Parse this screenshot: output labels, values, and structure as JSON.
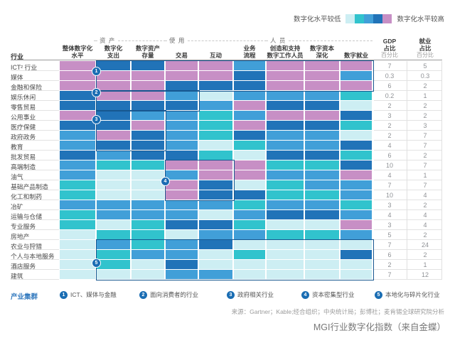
{
  "palette": {
    "levels": [
      "#cdeef3",
      "#31c3cd",
      "#419fd8",
      "#2173b8",
      "#c78fc5"
    ],
    "box_border": "#17578f",
    "badge_blue": "#1a6db3",
    "accent_blue": "#3279be"
  },
  "legend": {
    "low_label": "数字化水平较低",
    "high_label": "数字化水平较高"
  },
  "header": {
    "industry": "行业",
    "groups": [
      {
        "label": "资 产"
      },
      {
        "label": "使 用"
      },
      {
        "label": "人 员"
      }
    ],
    "columns": [
      {
        "l1": "整体数字化",
        "l2": "水平"
      },
      {
        "l1": "数字化",
        "l2": "支出"
      },
      {
        "l1": "数字资产",
        "l2": "存量"
      },
      {
        "l1": "",
        "l2": "交易"
      },
      {
        "l1": "",
        "l2": "互动"
      },
      {
        "l1": "业务",
        "l2": "流程"
      },
      {
        "l1": "创造和支持",
        "l2": "数字工作人员"
      },
      {
        "l1": "数字资本",
        "l2": "深化"
      },
      {
        "l1": "",
        "l2": "数字就业"
      }
    ],
    "gdp": {
      "l1": "GDP",
      "l2": "占比",
      "l3": "百分比"
    },
    "employment": {
      "l1": "就业",
      "l2": "占比",
      "l3": "百分比"
    }
  },
  "chart_data": {
    "type": "heatmap",
    "title": "MGI行业数字化指数（来自金蝶）",
    "level_meaning": "1=数字化水平较低 … 5=数字化水平较高（5级色阶：浅青→青绿→天蓝→深蓝→粉紫）",
    "columns": [
      "整体数字化水平",
      "数字化支出",
      "数字资产存量",
      "交易",
      "互动",
      "业务流程",
      "创造和支持数字工作人员",
      "数字资本深化",
      "数字就业"
    ],
    "value_columns": [
      "GDP占比 百分比",
      "就业占比 百分比"
    ],
    "rows": [
      {
        "name": "ICT² 行业",
        "levels": [
          5,
          4,
          4,
          5,
          5,
          3,
          5,
          5,
          5
        ],
        "gdp": "7",
        "employment": "5"
      },
      {
        "name": "媒体",
        "levels": [
          5,
          5,
          5,
          5,
          5,
          4,
          5,
          5,
          3
        ],
        "gdp": "0.3",
        "employment": "0.3"
      },
      {
        "name": "金融和保险",
        "levels": [
          5,
          5,
          5,
          4,
          4,
          4,
          5,
          5,
          5
        ],
        "gdp": "6",
        "employment": "2"
      },
      {
        "name": "娱乐休闲",
        "levels": [
          4,
          5,
          5,
          3,
          1,
          3,
          3,
          3,
          2
        ],
        "gdp": "0.2",
        "employment": "1"
      },
      {
        "name": "零售贸易",
        "levels": [
          4,
          4,
          4,
          4,
          3,
          5,
          4,
          4,
          1
        ],
        "gdp": "2",
        "employment": "2"
      },
      {
        "name": "公用事业",
        "levels": [
          5,
          4,
          3,
          3,
          2,
          3,
          5,
          5,
          4
        ],
        "gdp": "3",
        "employment": "2"
      },
      {
        "name": "医疗保健",
        "levels": [
          4,
          4,
          5,
          3,
          2,
          5,
          4,
          4,
          2
        ],
        "gdp": "2",
        "employment": "3"
      },
      {
        "name": "政府政务",
        "levels": [
          3,
          5,
          4,
          3,
          2,
          4,
          3,
          3,
          1
        ],
        "gdp": "2",
        "employment": "7"
      },
      {
        "name": "教育",
        "levels": [
          3,
          4,
          4,
          3,
          1,
          2,
          3,
          3,
          4
        ],
        "gdp": "4",
        "employment": "7"
      },
      {
        "name": "批发贸易",
        "levels": [
          4,
          3,
          4,
          4,
          2,
          1,
          4,
          4,
          2
        ],
        "gdp": "6",
        "employment": "2"
      },
      {
        "name": "高端制造",
        "levels": [
          3,
          2,
          2,
          5,
          5,
          5,
          2,
          2,
          4
        ],
        "gdp": "10",
        "employment": "7"
      },
      {
        "name": "油气",
        "levels": [
          3,
          1,
          1,
          3,
          5,
          5,
          3,
          3,
          5
        ],
        "gdp": "4",
        "employment": "1"
      },
      {
        "name": "基础产品制造",
        "levels": [
          2,
          1,
          1,
          5,
          4,
          1,
          2,
          3,
          3
        ],
        "gdp": "7",
        "employment": "7"
      },
      {
        "name": "化工和制药",
        "levels": [
          2,
          1,
          1,
          5,
          4,
          4,
          2,
          2,
          3
        ],
        "gdp": "10",
        "employment": "4"
      },
      {
        "name": "冶矿",
        "levels": [
          3,
          3,
          3,
          3,
          3,
          2,
          3,
          3,
          2
        ],
        "gdp": "3",
        "employment": "2"
      },
      {
        "name": "运输与仓储",
        "levels": [
          2,
          3,
          3,
          3,
          1,
          3,
          4,
          4,
          3
        ],
        "gdp": "4",
        "employment": "4"
      },
      {
        "name": "专业服务",
        "levels": [
          2,
          1,
          2,
          4,
          4,
          2,
          1,
          1,
          5
        ],
        "gdp": "3",
        "employment": "4"
      },
      {
        "name": "房地产",
        "levels": [
          1,
          2,
          2,
          1,
          3,
          3,
          2,
          2,
          3
        ],
        "gdp": "5",
        "employment": "2"
      },
      {
        "name": "农业与狩猎",
        "levels": [
          1,
          3,
          2,
          3,
          4,
          1,
          1,
          1,
          1
        ],
        "gdp": "7",
        "employment": "24"
      },
      {
        "name": "个人与本地服务",
        "levels": [
          1,
          2,
          3,
          3,
          1,
          2,
          1,
          1,
          4
        ],
        "gdp": "6",
        "employment": "2"
      },
      {
        "name": "酒店服务",
        "levels": [
          1,
          2,
          1,
          4,
          1,
          1,
          1,
          1,
          1
        ],
        "gdp": "2",
        "employment": "1"
      },
      {
        "name": "建筑",
        "levels": [
          1,
          1,
          1,
          3,
          3,
          1,
          1,
          1,
          1
        ],
        "gdp": "7",
        "employment": "12"
      }
    ],
    "cluster_boxes": [
      {
        "num": "1",
        "rows": [
          1,
          3
        ],
        "cols": [
          2,
          9
        ]
      },
      {
        "num": "2",
        "rows": [
          4,
          5
        ],
        "cols": [
          2,
          4
        ]
      },
      {
        "num": "3",
        "rows": [
          6,
          9
        ],
        "cols": [
          2,
          3
        ]
      },
      {
        "num": "4",
        "rows": [
          11,
          14
        ],
        "cols": [
          4,
          5
        ]
      },
      {
        "num": "5",
        "rows": [
          19,
          22
        ],
        "cols": [
          2,
          9
        ]
      }
    ]
  },
  "clusters": {
    "title": "产业集群",
    "items": [
      {
        "num": "1",
        "label": "ICT、媒体与金融"
      },
      {
        "num": "2",
        "label": "面向消费者的行业"
      },
      {
        "num": "3",
        "label": "政府相关行业"
      },
      {
        "num": "4",
        "label": "资本密集型行业"
      },
      {
        "num": "5",
        "label": "本地化与碎片化行业"
      }
    ]
  },
  "source": "来源：Gartner；Kable;经合组织；中央统计局；彭博社；麦肯锡全球研究院分析",
  "caption": "MGI行业数字化指数（来自金蝶）"
}
